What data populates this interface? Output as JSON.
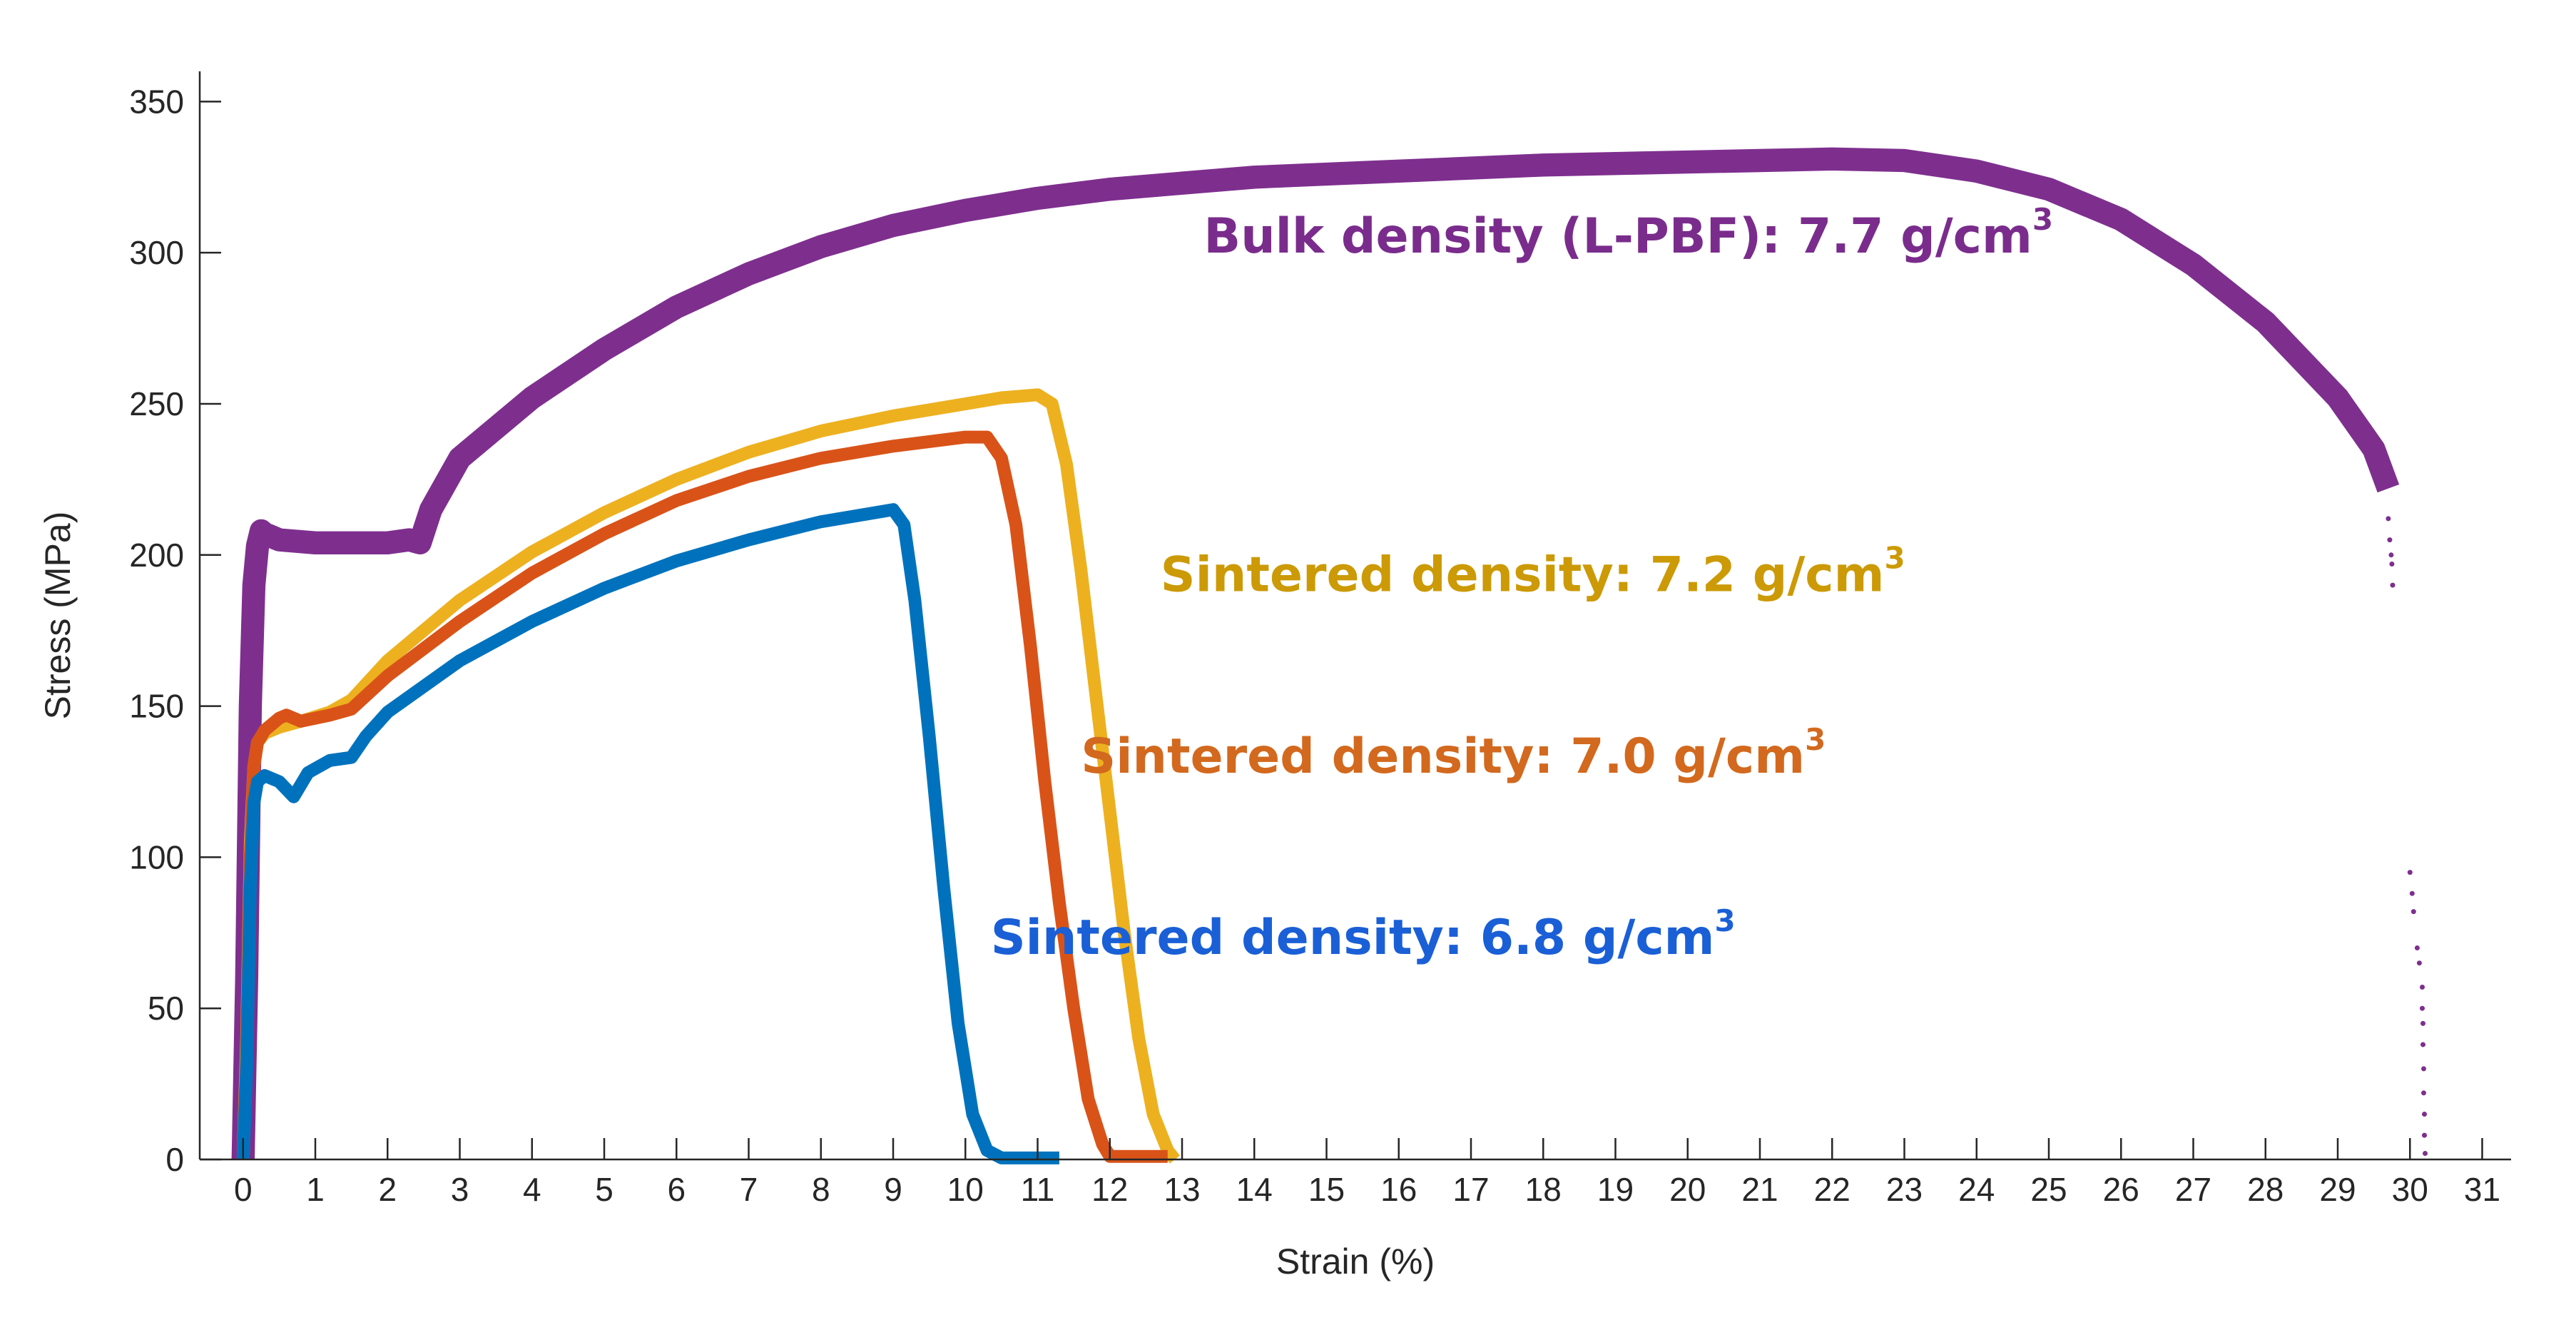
{
  "chart_data": {
    "type": "line",
    "title": "",
    "xlabel": "Strain (%)",
    "ylabel": "Stress (MPa)",
    "xlim": [
      -0.6,
      31.4
    ],
    "ylim": [
      0,
      360
    ],
    "x_ticks": [
      0,
      1,
      2,
      3,
      4,
      5,
      6,
      7,
      8,
      9,
      10,
      11,
      12,
      13,
      14,
      15,
      16,
      17,
      18,
      19,
      20,
      21,
      22,
      23,
      24,
      25,
      26,
      27,
      28,
      29,
      30,
      31
    ],
    "y_ticks": [
      0,
      50,
      100,
      150,
      200,
      250,
      300,
      350
    ],
    "x_tick_labels": [
      "0",
      "1",
      "2",
      "3",
      "4",
      "5",
      "6",
      "7",
      "8",
      "9",
      "10",
      "11",
      "12",
      "13",
      "14",
      "15",
      "16",
      "17",
      "18",
      "19",
      "20",
      "21",
      "22",
      "23",
      "24",
      "25",
      "26",
      "27",
      "28",
      "29",
      "30",
      "31"
    ],
    "y_tick_labels": [
      "0",
      "50",
      "100",
      "150",
      "200",
      "250",
      "300",
      "350"
    ],
    "grid": false,
    "series": [
      {
        "name": "Bulk density (L-PBF): 7.7 g/cm3",
        "color": "#7E2F8E",
        "band": 9,
        "points": [
          [
            0.0,
            0
          ],
          [
            0.05,
            60
          ],
          [
            0.1,
            150
          ],
          [
            0.15,
            190
          ],
          [
            0.2,
            203
          ],
          [
            0.25,
            208
          ],
          [
            0.3,
            207
          ],
          [
            0.5,
            205
          ],
          [
            1.0,
            204
          ],
          [
            1.5,
            204
          ],
          [
            2.0,
            204
          ],
          [
            2.3,
            205
          ],
          [
            2.45,
            204
          ],
          [
            2.6,
            215
          ],
          [
            3,
            232
          ],
          [
            4,
            252
          ],
          [
            5,
            268
          ],
          [
            6,
            282
          ],
          [
            7,
            293
          ],
          [
            8,
            302
          ],
          [
            9,
            309
          ],
          [
            10,
            314
          ],
          [
            11,
            318
          ],
          [
            12,
            321
          ],
          [
            13,
            323
          ],
          [
            14,
            325
          ],
          [
            15,
            326
          ],
          [
            16,
            327
          ],
          [
            17,
            328
          ],
          [
            18,
            329
          ],
          [
            19,
            329.5
          ],
          [
            20,
            330
          ],
          [
            21,
            330.5
          ],
          [
            22,
            331
          ],
          [
            23,
            330.5
          ],
          [
            24,
            327
          ],
          [
            25,
            321
          ],
          [
            26,
            311
          ],
          [
            27,
            296
          ],
          [
            28,
            277
          ],
          [
            29,
            252
          ],
          [
            29.5,
            235
          ],
          [
            29.7,
            222
          ]
        ]
      },
      {
        "name": "Sintered density: 7.2 g/cm3",
        "color": "#EDB120",
        "band": 5,
        "points": [
          [
            0.0,
            0
          ],
          [
            0.05,
            40
          ],
          [
            0.1,
            105
          ],
          [
            0.15,
            130
          ],
          [
            0.2,
            138
          ],
          [
            0.3,
            141
          ],
          [
            0.5,
            143
          ],
          [
            0.8,
            145
          ],
          [
            1.2,
            148
          ],
          [
            1.5,
            152
          ],
          [
            2,
            165
          ],
          [
            3,
            185
          ],
          [
            4,
            201
          ],
          [
            5,
            214
          ],
          [
            6,
            225
          ],
          [
            7,
            234
          ],
          [
            8,
            241
          ],
          [
            9,
            246
          ],
          [
            10,
            250
          ],
          [
            10.5,
            252
          ],
          [
            11,
            253
          ],
          [
            11.2,
            250
          ],
          [
            11.4,
            230
          ],
          [
            11.6,
            195
          ],
          [
            11.8,
            155
          ],
          [
            12,
            115
          ],
          [
            12.2,
            75
          ],
          [
            12.4,
            40
          ],
          [
            12.6,
            15
          ],
          [
            12.8,
            3
          ],
          [
            12.9,
            0
          ]
        ]
      },
      {
        "name": "Sintered density: 7.0 g/cm3",
        "color": "#D95319",
        "band": 5,
        "points": [
          [
            0.0,
            0
          ],
          [
            0.05,
            35
          ],
          [
            0.1,
            100
          ],
          [
            0.15,
            130
          ],
          [
            0.2,
            138
          ],
          [
            0.3,
            142
          ],
          [
            0.5,
            146
          ],
          [
            0.6,
            147
          ],
          [
            0.8,
            145
          ],
          [
            1.2,
            147
          ],
          [
            1.5,
            149
          ],
          [
            2,
            160
          ],
          [
            3,
            178
          ],
          [
            4,
            194
          ],
          [
            5,
            207
          ],
          [
            6,
            218
          ],
          [
            7,
            226
          ],
          [
            8,
            232
          ],
          [
            9,
            236
          ],
          [
            10,
            239
          ],
          [
            10.3,
            239
          ],
          [
            10.5,
            232
          ],
          [
            10.7,
            210
          ],
          [
            10.9,
            170
          ],
          [
            11.1,
            125
          ],
          [
            11.3,
            85
          ],
          [
            11.5,
            50
          ],
          [
            11.7,
            20
          ],
          [
            11.9,
            5
          ],
          [
            12,
            1
          ],
          [
            12.8,
            1
          ]
        ]
      },
      {
        "name": "Sintered density: 6.8 g/cm3",
        "color": "#0072BD",
        "band": 5,
        "points": [
          [
            0.0,
            0
          ],
          [
            0.05,
            30
          ],
          [
            0.1,
            90
          ],
          [
            0.15,
            118
          ],
          [
            0.2,
            125
          ],
          [
            0.3,
            127
          ],
          [
            0.5,
            125
          ],
          [
            0.7,
            120
          ],
          [
            0.9,
            128
          ],
          [
            1.2,
            132
          ],
          [
            1.5,
            133
          ],
          [
            1.7,
            140
          ],
          [
            2,
            148
          ],
          [
            3,
            165
          ],
          [
            4,
            178
          ],
          [
            5,
            189
          ],
          [
            6,
            198
          ],
          [
            7,
            205
          ],
          [
            8,
            211
          ],
          [
            8.5,
            213
          ],
          [
            9,
            215
          ],
          [
            9.15,
            210
          ],
          [
            9.3,
            185
          ],
          [
            9.5,
            140
          ],
          [
            9.7,
            90
          ],
          [
            9.9,
            45
          ],
          [
            10.1,
            15
          ],
          [
            10.3,
            3
          ],
          [
            10.5,
            0.5
          ],
          [
            11.3,
            0.5
          ]
        ]
      }
    ],
    "scatter_fragments": [
      {
        "name": "bulk-fracture-tail",
        "color": "#7E2F8E",
        "points": [
          [
            29.7,
            212
          ],
          [
            29.72,
            205
          ],
          [
            29.74,
            200
          ],
          [
            29.75,
            197
          ],
          [
            29.76,
            190
          ],
          [
            30.0,
            95
          ],
          [
            30.03,
            88
          ],
          [
            30.05,
            82
          ],
          [
            30.1,
            70
          ],
          [
            30.13,
            65
          ],
          [
            30.17,
            57
          ],
          [
            30.17,
            50
          ],
          [
            30.18,
            45
          ],
          [
            30.18,
            38
          ],
          [
            30.19,
            30
          ],
          [
            30.19,
            22
          ],
          [
            30.2,
            15
          ],
          [
            30.2,
            8
          ],
          [
            30.21,
            2
          ]
        ]
      }
    ],
    "annotations": [
      {
        "text": "Bulk density (L-PBF): 7.7 g/cm",
        "sup": "3",
        "color": "#7A2C8C",
        "x": 13.3,
        "y": 300
      },
      {
        "text": "Sintered density: 7.2 g/cm",
        "sup": "3",
        "color": "#CC9A06",
        "x": 12.7,
        "y": 188
      },
      {
        "text": "Sintered density: 7.0 g/cm",
        "sup": "3",
        "color": "#D2691E",
        "x": 11.6,
        "y": 128
      },
      {
        "text": "Sintered density: 6.8 g/cm",
        "sup": "3",
        "color": "#1A5FD6",
        "x": 10.35,
        "y": 68
      }
    ]
  }
}
